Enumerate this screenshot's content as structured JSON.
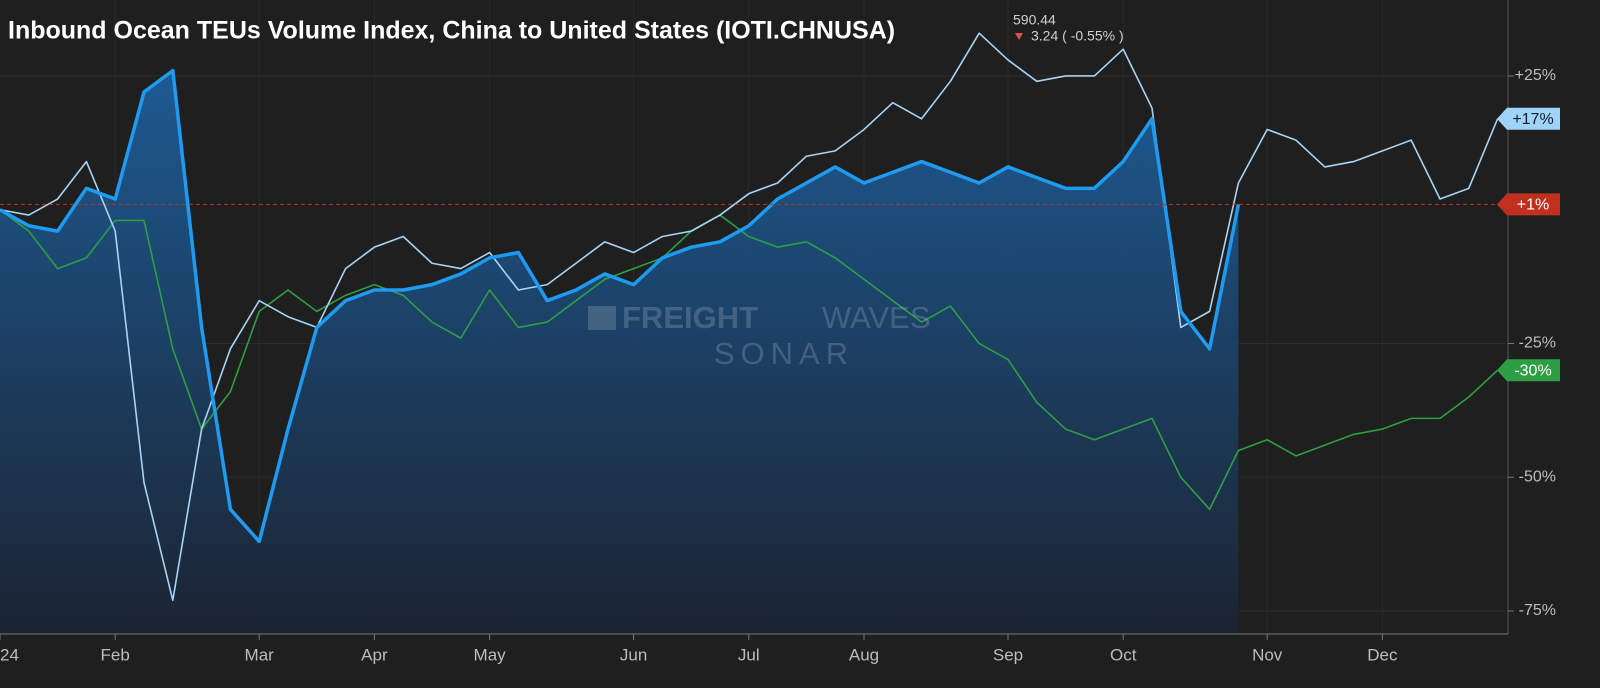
{
  "chart_data": {
    "type": "line",
    "title": "Inbound Ocean TEUs Volume Index, China to United States (IOTI.CHNUSA)",
    "quote": {
      "price": "590.44",
      "change": "3.24 ( -0.55% )"
    },
    "watermark": {
      "brand_bold": "FREIGHT",
      "brand_light": "WAVES",
      "product": "SONAR"
    },
    "categories": [
      "24",
      null,
      null,
      null,
      "Feb",
      null,
      null,
      null,
      null,
      "Mar",
      null,
      null,
      null,
      "Apr",
      null,
      null,
      null,
      "May",
      null,
      null,
      null,
      null,
      "Jun",
      null,
      null,
      null,
      "Jul",
      null,
      null,
      null,
      "Aug",
      null,
      null,
      null,
      null,
      "Sep",
      null,
      null,
      null,
      "Oct",
      null,
      null,
      null,
      null,
      "Nov",
      null,
      null,
      null,
      "Dec",
      null,
      null,
      null,
      null
    ],
    "ylim": [
      -79.3,
      39.2
    ],
    "yticks": [
      {
        "value": 25,
        "label": "+25%"
      },
      {
        "value": -25,
        "label": "-25%"
      },
      {
        "value": -50,
        "label": "-50%"
      },
      {
        "value": -75,
        "label": "-75%"
      }
    ],
    "grid": true,
    "series": [
      {
        "color": "#1e9bf0",
        "width": 3.5,
        "area": true,
        "last_label": "+1%",
        "tag_color": "#c0301f",
        "tag_text": "#ffffff",
        "values": [
          0,
          -3,
          -4,
          4,
          2,
          22,
          26,
          -22,
          -56,
          -62,
          -41,
          -22,
          -17,
          -15,
          -15,
          -14,
          -12,
          -9,
          -8,
          -17,
          -15,
          -12,
          -14,
          -9,
          -7,
          -6,
          -3,
          2,
          5,
          8,
          5,
          7,
          9,
          7,
          5,
          8,
          6,
          4,
          4,
          9,
          17,
          -19,
          -26,
          1,
          null,
          null,
          null,
          null,
          null,
          null,
          null,
          null,
          null
        ]
      },
      {
        "color": "#a8d4f5",
        "width": 1.6,
        "last_label": "+17%",
        "tag_color": "#9fd3f7",
        "tag_text": "#10202e",
        "values": [
          0,
          -1,
          2,
          9,
          -4,
          -51,
          -73,
          -41,
          -26,
          -17,
          -20,
          -22,
          -11,
          -7,
          -5,
          -10,
          -11,
          -8,
          -15,
          -14,
          -10,
          -6,
          -8,
          -5,
          -4,
          -1,
          3,
          5,
          10,
          11,
          15,
          20,
          17,
          24,
          33,
          28,
          24,
          25,
          25,
          30,
          19,
          -22,
          -19,
          5,
          15,
          13,
          8,
          9,
          11,
          13,
          2,
          4,
          17
        ]
      },
      {
        "color": "#2e9e44",
        "width": 1.6,
        "last_label": "-30%",
        "tag_color": "#2e9e44",
        "tag_text": "#ffffff",
        "values": [
          0,
          -4,
          -11,
          -9,
          -2,
          -2,
          -26,
          -41,
          -34,
          -19,
          -15,
          -19,
          -16,
          -14,
          -16,
          -21,
          -24,
          -15,
          -22,
          -21,
          -17,
          -13,
          -11,
          -9,
          -4,
          -1,
          -5,
          -7,
          -6,
          -9,
          -13,
          -17,
          -21,
          -18,
          -25,
          -28,
          -36,
          -41,
          -43,
          -41,
          -39,
          -50,
          -56,
          -45,
          -43,
          -46,
          -44,
          -42,
          -41,
          -39,
          -39,
          -35,
          -30
        ]
      }
    ]
  }
}
